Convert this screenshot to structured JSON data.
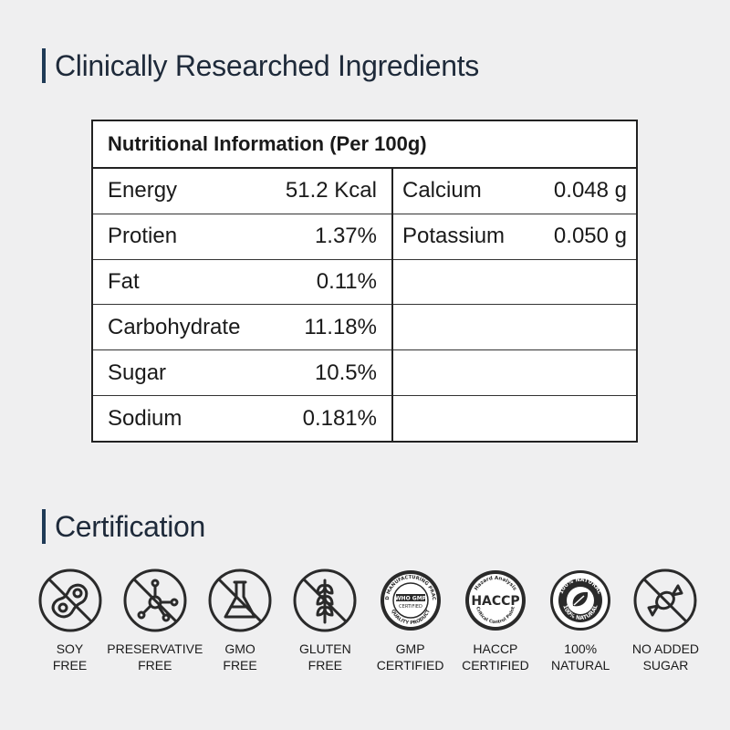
{
  "headings": {
    "ingredients": "Clinically Researched Ingredients",
    "certification": "Certification"
  },
  "nutrition": {
    "title": "Nutritional Information (Per 100g)",
    "left": [
      {
        "name": "Energy",
        "value": "51.2 Kcal"
      },
      {
        "name": "Protien",
        "value": "1.37%"
      },
      {
        "name": "Fat",
        "value": "0.11%"
      },
      {
        "name": "Carbohydrate",
        "value": "11.18%"
      },
      {
        "name": "Sugar",
        "value": "10.5%"
      },
      {
        "name": "Sodium",
        "value": "0.181%"
      }
    ],
    "right": [
      {
        "name": "Calcium",
        "value": "0.048 g"
      },
      {
        "name": "Potassium",
        "value": "0.050 g"
      }
    ]
  },
  "certifications": [
    {
      "icon": "soy-free-icon",
      "line1": "SOY",
      "line2": "FREE"
    },
    {
      "icon": "preservative-free-icon",
      "line1": "PRESERVATIVE",
      "line2": "FREE"
    },
    {
      "icon": "gmo-free-icon",
      "line1": "GMO",
      "line2": "FREE"
    },
    {
      "icon": "gluten-free-icon",
      "line1": "GLUTEN",
      "line2": "FREE"
    },
    {
      "icon": "gmp-certified-icon",
      "line1": "GMP",
      "line2": "CERTIFIED",
      "badge_text": [
        "GOOD MANUFACTURING PRACTICE",
        "WHO GMP",
        "CERTIFIED",
        "QUALITY PRODUCT"
      ]
    },
    {
      "icon": "haccp-certified-icon",
      "line1": "HACCP",
      "line2": "CERTIFIED",
      "badge_text": [
        "Hazard Analysis",
        "HACCP",
        "Critical Control Point"
      ]
    },
    {
      "icon": "natural-icon",
      "line1": "100%",
      "line2": "NATURAL",
      "badge_text": [
        "100% NATURAL",
        "100% NATURAL"
      ]
    },
    {
      "icon": "no-added-sugar-icon",
      "line1": "NO ADDED",
      "line2": "SUGAR"
    }
  ],
  "colors": {
    "background": "#efeff0",
    "accent_bar": "#1f3a56",
    "heading_text": "#1e2a3a",
    "icon_stroke": "#2a2a2a"
  }
}
